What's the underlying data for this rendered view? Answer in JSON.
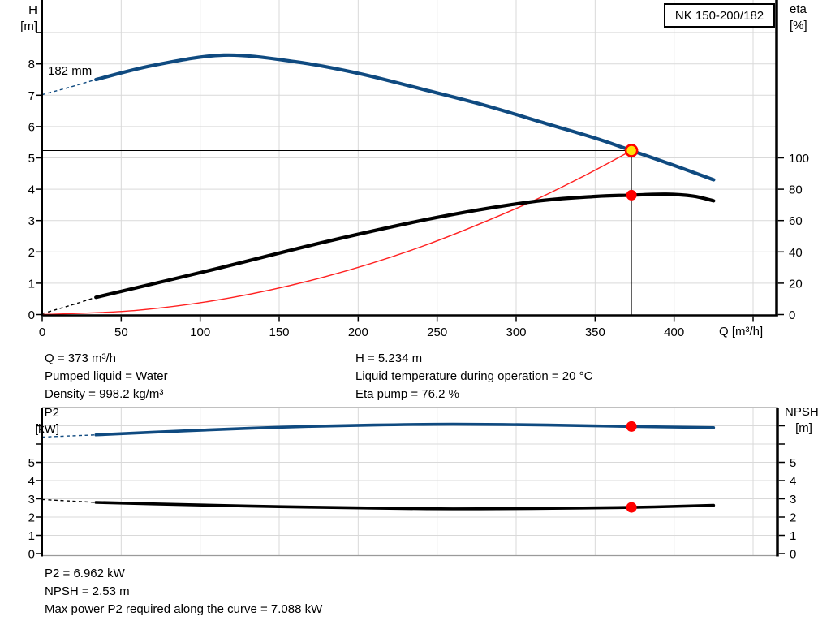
{
  "title_box": {
    "label": "NK 150-200/182"
  },
  "labels": {
    "h_axis_1": "H",
    "h_axis_2": "[m]",
    "eta_axis_1": "eta",
    "eta_axis_2": "[%]",
    "q_axis": "Q [m³/h]",
    "p2_axis_1": "P2",
    "p2_axis_2": "[kW]",
    "npsh_axis_1": "NPSH",
    "npsh_axis_2": "[m]",
    "impeller": "182 mm"
  },
  "info_top": {
    "left": [
      "Q = 373 m³/h",
      "Pumped liquid = Water",
      "Density = 998.2 kg/m³"
    ],
    "right": [
      "H = 5.234 m",
      "Liquid temperature during operation = 20 °C",
      "Eta pump = 76.2 %"
    ]
  },
  "info_bottom": [
    "P2 = 6.962 kW",
    "NPSH = 2.53 m",
    "Max power P2 required along the curve = 7.088 kW"
  ],
  "colors": {
    "blue": "#0f4a80",
    "black": "#000000",
    "red": "#ff2121",
    "marker_red": "#ff0000",
    "marker_yellow": "#ffe10a",
    "grid": "#d9d9d9",
    "axis": "#000000",
    "frame_gray": "#9a9a9a"
  },
  "chart_data": [
    {
      "type": "line",
      "name": "qh-efficiency-chart",
      "title": "NK 150-200/182",
      "x_axis": {
        "title": "Q [m³/h]",
        "min": 0,
        "max": 464,
        "ticks": [
          0,
          50,
          100,
          150,
          200,
          250,
          300,
          350,
          400,
          450
        ],
        "tick_labels": [
          "0",
          "50",
          "100",
          "150",
          "200",
          "250",
          "300",
          "350",
          "400",
          ""
        ],
        "grid": [
          50,
          100,
          150,
          200,
          250,
          300,
          350,
          400,
          450
        ]
      },
      "y_left": {
        "title": "H [m]",
        "min": 0,
        "max": 10,
        "ticks": [
          0,
          1,
          2,
          3,
          4,
          5,
          6,
          7,
          8,
          9
        ],
        "tick_labels": [
          "0",
          "1",
          "2",
          "3",
          "4",
          "5",
          "6",
          "7",
          "8",
          ""
        ],
        "grid": [
          1,
          2,
          3,
          4,
          5,
          6,
          7,
          8,
          9
        ]
      },
      "y_right": {
        "title": "eta [%]",
        "min": 0,
        "max": 100,
        "ticks": [
          0,
          20,
          40,
          60,
          80,
          100
        ],
        "tick_labels": [
          "0",
          "20",
          "40",
          "60",
          "80",
          "100"
        ],
        "left_units_per_unit": 0.05
      },
      "series": [
        {
          "name": "system-curve",
          "color": "red",
          "width": 1.4,
          "points": [
            [
              0,
              0
            ],
            [
              60,
              0.135
            ],
            [
              120,
              0.542
            ],
            [
              180,
              1.22
            ],
            [
              240,
              2.167
            ],
            [
              300,
              3.386
            ],
            [
              340,
              4.349
            ],
            [
              373,
              5.234
            ]
          ]
        },
        {
          "name": "head-curve",
          "color": "blue",
          "width": 4.2,
          "label": "182 mm",
          "lead_dashed": [
            [
              0,
              7.02
            ],
            [
              17,
              7.25
            ],
            [
              34,
              7.5
            ]
          ],
          "points": [
            [
              34,
              7.5
            ],
            [
              70,
              7.95
            ],
            [
              115,
              8.28
            ],
            [
              160,
              8.07
            ],
            [
              200,
              7.7
            ],
            [
              240,
              7.2
            ],
            [
              280,
              6.68
            ],
            [
              320,
              6.08
            ],
            [
              350,
              5.63
            ],
            [
              373,
              5.234
            ],
            [
              400,
              4.76
            ],
            [
              425,
              4.3
            ]
          ]
        },
        {
          "name": "efficiency-curve",
          "color": "black",
          "width": 4.2,
          "lead_dashed": [
            [
              0,
              0.03
            ],
            [
              17,
              0.28
            ],
            [
              34,
              0.55
            ]
          ],
          "points": [
            [
              34,
              0.55
            ],
            [
              106,
              1.41
            ],
            [
              180,
              2.33
            ],
            [
              250,
              3.1
            ],
            [
              310,
              3.6
            ],
            [
              350,
              3.77
            ],
            [
              373,
              3.81
            ],
            [
              395,
              3.84
            ],
            [
              412,
              3.78
            ],
            [
              425,
              3.63
            ]
          ]
        }
      ],
      "crosshair": {
        "q": 373,
        "v": 5.234
      },
      "markers": [
        {
          "name": "duty-point",
          "q": 373,
          "v": 5.234,
          "style": "yellow-ring",
          "interactable": true
        },
        {
          "name": "efficiency-point",
          "q": 373,
          "v": 3.81,
          "style": "red",
          "interactable": false
        }
      ],
      "operating_point": {
        "q_m3h": 373,
        "h_m": 5.234,
        "eta_pct": 76.2,
        "pumped_liquid": "Water",
        "density_kg_m3": 998.2,
        "liquid_temp_c": 20,
        "impeller_mm": 182
      }
    },
    {
      "type": "line",
      "name": "p2-npsh-chart",
      "x_axis": {
        "title": "",
        "min": 0,
        "max": 465,
        "ticks": [],
        "tick_labels": [],
        "grid": [
          50,
          100,
          150,
          200,
          250,
          300,
          350,
          400,
          450
        ]
      },
      "y_left": {
        "title": "P2 [kW]",
        "min": 0,
        "max": 8,
        "ticks": [
          0,
          1,
          2,
          3,
          4,
          5,
          6,
          7
        ],
        "tick_labels": [
          "0",
          "1",
          "2",
          "3",
          "4",
          "5",
          "",
          ""
        ],
        "grid": [
          1,
          2,
          3,
          4,
          5,
          6,
          7
        ]
      },
      "y_right": {
        "title": "NPSH [m]",
        "min": 0,
        "max": 8,
        "ticks": [
          0,
          1,
          2,
          3,
          4,
          5,
          6,
          7
        ],
        "tick_labels": [
          "0",
          "1",
          "2",
          "3",
          "4",
          "5",
          "",
          ""
        ],
        "left_units_per_unit": 1
      },
      "series": [
        {
          "name": "p2-curve",
          "color": "blue",
          "width": 3.6,
          "lead_dashed": [
            [
              0,
              6.38
            ],
            [
              17,
              6.44
            ],
            [
              34,
              6.5
            ]
          ],
          "points": [
            [
              34,
              6.5
            ],
            [
              90,
              6.72
            ],
            [
              150,
              6.92
            ],
            [
              210,
              7.04
            ],
            [
              260,
              7.088
            ],
            [
              320,
              7.04
            ],
            [
              373,
              6.962
            ],
            [
              425,
              6.9
            ]
          ]
        },
        {
          "name": "npsh-curve",
          "color": "black",
          "width": 3.6,
          "lead_dashed": [
            [
              0,
              2.96
            ],
            [
              17,
              2.88
            ],
            [
              34,
              2.8
            ]
          ],
          "points": [
            [
              34,
              2.8
            ],
            [
              90,
              2.68
            ],
            [
              150,
              2.57
            ],
            [
              210,
              2.49
            ],
            [
              260,
              2.45
            ],
            [
              310,
              2.47
            ],
            [
              373,
              2.53
            ],
            [
              425,
              2.64
            ]
          ]
        }
      ],
      "markers": [
        {
          "name": "p2-point",
          "q": 373,
          "v": 6.962,
          "style": "red",
          "interactable": false
        },
        {
          "name": "npsh-point",
          "q": 373,
          "v": 2.53,
          "style": "red",
          "interactable": false
        }
      ],
      "operating_point": {
        "q_m3h": 373,
        "p2_kw": 6.962,
        "npsh_m": 2.53,
        "p2_max_kw": 7.088
      }
    }
  ]
}
